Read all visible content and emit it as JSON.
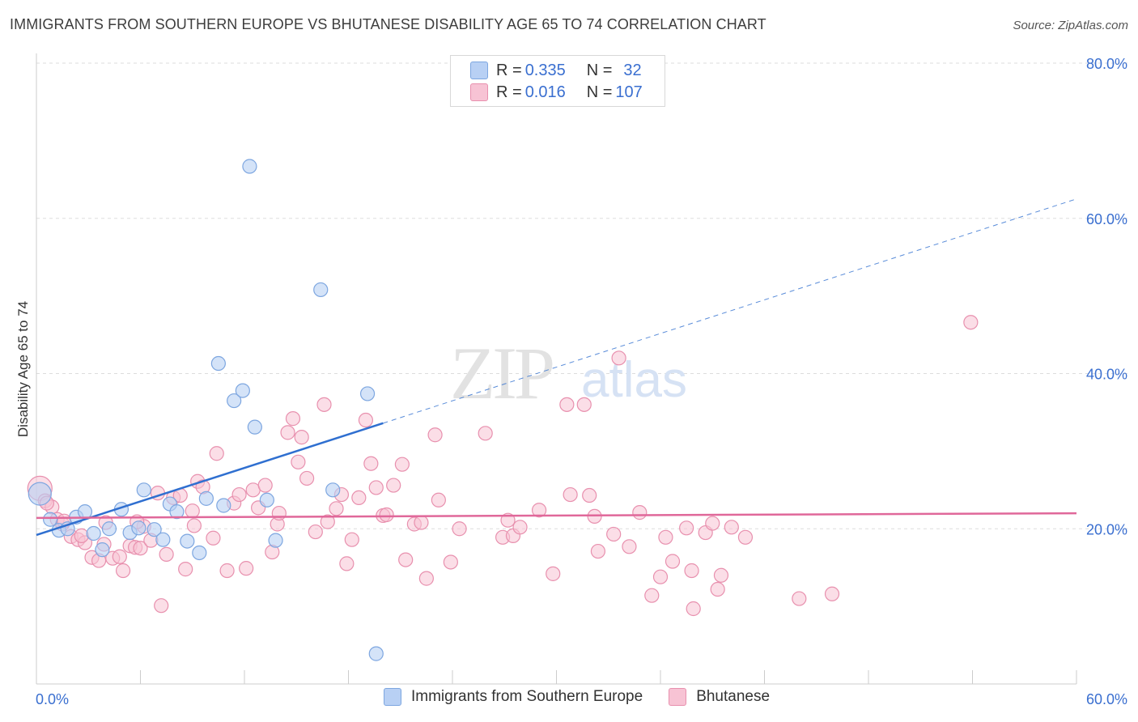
{
  "title": "IMMIGRANTS FROM SOUTHERN EUROPE VS BHUTANESE DISABILITY AGE 65 TO 74 CORRELATION CHART",
  "source": "Source: ZipAtlas.com",
  "watermark": {
    "zip": "ZIP",
    "atlas": "atlas"
  },
  "colors": {
    "blue_fill": "#b8d0f4",
    "blue_stroke": "#7da6e0",
    "blue_line": "#2f6fd0",
    "pink_fill": "#f7c3d4",
    "pink_stroke": "#e890ae",
    "pink_line": "#e0689a",
    "grid": "#dddddd",
    "tick_label": "#3a6fd0"
  },
  "legend_top": [
    {
      "r_label": "R = ",
      "r_value": "0.335",
      "n_label": "N = ",
      "n_value": "32",
      "color": "blue"
    },
    {
      "r_label": "R = ",
      "r_value": "0.016",
      "n_label": "N = ",
      "n_value": "107",
      "color": "pink"
    }
  ],
  "legend_bottom": [
    {
      "label": "Immigrants from Southern Europe",
      "color": "blue"
    },
    {
      "label": "Bhutanese",
      "color": "pink"
    }
  ],
  "chart_data": {
    "type": "scatter",
    "title": "IMMIGRANTS FROM SOUTHERN EUROPE VS BHUTANESE DISABILITY AGE 65 TO 74 CORRELATION CHART",
    "xlabel": "",
    "ylabel": "Disability Age 65 to 74",
    "xlim": [
      0,
      60
    ],
    "ylim": [
      0,
      80
    ],
    "x_tick_labels": [
      "0.0%",
      "60.0%"
    ],
    "y_ticks": [
      20,
      40,
      60,
      80
    ],
    "y_tick_labels": [
      "20.0%",
      "40.0%",
      "60.0%",
      "80.0%"
    ],
    "grid": true,
    "legend": "top-center",
    "series": [
      {
        "name": "Immigrants from Southern Europe",
        "color": "#7da6e0",
        "R": 0.335,
        "N": 32,
        "trend": {
          "x": [
            0,
            20
          ],
          "y": [
            19.2,
            33.6
          ],
          "dashed_to": [
            60,
            62.5
          ]
        },
        "points": [
          [
            0.2,
            24.5
          ],
          [
            0.8,
            21.2
          ],
          [
            1.3,
            19.8
          ],
          [
            1.8,
            20.0
          ],
          [
            2.3,
            21.5
          ],
          [
            2.8,
            22.2
          ],
          [
            3.3,
            19.4
          ],
          [
            3.8,
            17.3
          ],
          [
            4.2,
            20.0
          ],
          [
            4.9,
            22.5
          ],
          [
            5.4,
            19.5
          ],
          [
            5.9,
            20.1
          ],
          [
            6.2,
            25.0
          ],
          [
            6.8,
            19.9
          ],
          [
            7.3,
            18.6
          ],
          [
            7.7,
            23.2
          ],
          [
            8.1,
            22.2
          ],
          [
            8.7,
            18.4
          ],
          [
            9.4,
            16.9
          ],
          [
            9.8,
            23.9
          ],
          [
            10.5,
            41.3
          ],
          [
            10.8,
            23.0
          ],
          [
            11.4,
            36.5
          ],
          [
            12.3,
            66.7
          ],
          [
            11.9,
            37.8
          ],
          [
            12.6,
            33.1
          ],
          [
            13.3,
            23.7
          ],
          [
            13.8,
            18.5
          ],
          [
            16.4,
            50.8
          ],
          [
            17.1,
            25.0
          ],
          [
            19.1,
            37.4
          ],
          [
            19.6,
            3.9
          ]
        ]
      },
      {
        "name": "Bhutanese",
        "color": "#e890ae",
        "R": 0.016,
        "N": 107,
        "trend": {
          "x": [
            0,
            60
          ],
          "y": [
            21.4,
            22.0
          ]
        },
        "points": [
          [
            0.2,
            25.2
          ],
          [
            0.5,
            23.6
          ],
          [
            0.9,
            22.8
          ],
          [
            1.2,
            21.2
          ],
          [
            1.5,
            20.6
          ],
          [
            2.0,
            19.0
          ],
          [
            2.4,
            18.6
          ],
          [
            2.8,
            18.2
          ],
          [
            3.2,
            16.3
          ],
          [
            3.6,
            15.9
          ],
          [
            4.0,
            20.8
          ],
          [
            4.4,
            16.2
          ],
          [
            4.8,
            16.4
          ],
          [
            5.0,
            14.6
          ],
          [
            5.4,
            17.8
          ],
          [
            5.7,
            17.6
          ],
          [
            6.0,
            17.5
          ],
          [
            6.2,
            20.3
          ],
          [
            6.6,
            18.5
          ],
          [
            7.0,
            24.6
          ],
          [
            7.2,
            10.1
          ],
          [
            7.5,
            16.7
          ],
          [
            7.9,
            24.0
          ],
          [
            8.3,
            24.3
          ],
          [
            8.6,
            14.8
          ],
          [
            9.0,
            22.3
          ],
          [
            9.3,
            26.1
          ],
          [
            9.6,
            25.4
          ],
          [
            10.2,
            18.8
          ],
          [
            10.4,
            29.7
          ],
          [
            11.0,
            14.6
          ],
          [
            11.4,
            23.3
          ],
          [
            11.7,
            24.4
          ],
          [
            12.1,
            14.9
          ],
          [
            12.5,
            25.0
          ],
          [
            12.8,
            22.7
          ],
          [
            13.2,
            25.6
          ],
          [
            13.6,
            17.0
          ],
          [
            13.9,
            20.6
          ],
          [
            14.0,
            22.0
          ],
          [
            14.5,
            32.4
          ],
          [
            14.8,
            34.2
          ],
          [
            15.1,
            28.6
          ],
          [
            15.3,
            31.8
          ],
          [
            15.6,
            26.5
          ],
          [
            16.1,
            19.6
          ],
          [
            16.6,
            36.0
          ],
          [
            16.8,
            20.9
          ],
          [
            17.3,
            22.6
          ],
          [
            17.6,
            24.4
          ],
          [
            17.9,
            15.5
          ],
          [
            18.2,
            18.6
          ],
          [
            18.6,
            24.0
          ],
          [
            19.0,
            34.0
          ],
          [
            19.3,
            28.4
          ],
          [
            19.6,
            25.3
          ],
          [
            20.0,
            21.7
          ],
          [
            20.2,
            21.8
          ],
          [
            20.6,
            25.6
          ],
          [
            21.1,
            28.3
          ],
          [
            21.3,
            16.0
          ],
          [
            21.8,
            20.6
          ],
          [
            22.2,
            20.8
          ],
          [
            22.5,
            13.6
          ],
          [
            23.0,
            32.1
          ],
          [
            23.2,
            23.7
          ],
          [
            23.9,
            15.7
          ],
          [
            24.4,
            20.0
          ],
          [
            25.9,
            32.3
          ],
          [
            26.9,
            18.9
          ],
          [
            27.2,
            21.1
          ],
          [
            27.5,
            19.1
          ],
          [
            27.9,
            20.2
          ],
          [
            29.0,
            22.4
          ],
          [
            29.8,
            14.2
          ],
          [
            30.6,
            36.0
          ],
          [
            30.8,
            24.4
          ],
          [
            31.6,
            36.0
          ],
          [
            31.9,
            24.3
          ],
          [
            32.2,
            21.6
          ],
          [
            32.4,
            17.1
          ],
          [
            33.6,
            42.0
          ],
          [
            33.3,
            19.3
          ],
          [
            34.2,
            17.7
          ],
          [
            34.8,
            22.1
          ],
          [
            35.5,
            11.4
          ],
          [
            36.0,
            13.8
          ],
          [
            36.3,
            18.9
          ],
          [
            36.7,
            15.8
          ],
          [
            37.5,
            20.1
          ],
          [
            37.8,
            14.6
          ],
          [
            37.9,
            9.7
          ],
          [
            38.6,
            19.5
          ],
          [
            39.0,
            20.7
          ],
          [
            39.3,
            12.2
          ],
          [
            39.5,
            14.0
          ],
          [
            40.1,
            20.2
          ],
          [
            40.9,
            18.9
          ],
          [
            44.0,
            11.0
          ],
          [
            45.9,
            11.6
          ],
          [
            53.9,
            46.6
          ],
          [
            0.6,
            23.3
          ],
          [
            1.6,
            21.0
          ],
          [
            2.6,
            19.1
          ],
          [
            3.9,
            18.0
          ],
          [
            5.8,
            20.9
          ],
          [
            9.1,
            20.4
          ]
        ]
      }
    ]
  }
}
